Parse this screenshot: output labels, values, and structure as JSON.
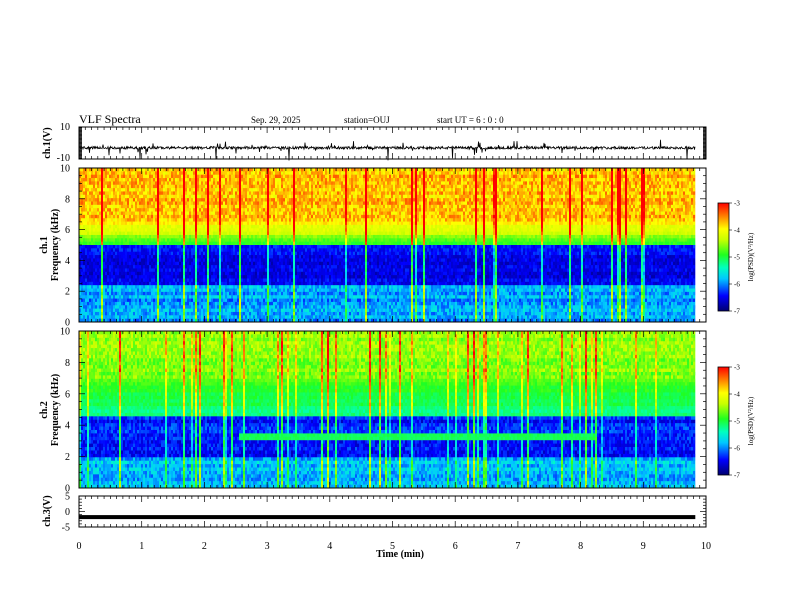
{
  "header": {
    "title": "VLF Spectra",
    "date": "Sep. 29, 2025",
    "station": "station=OUJ",
    "start": "start  UT =   6 : 0  : 0"
  },
  "chart_data": [
    {
      "type": "line",
      "ylabel": "ch.1(V)",
      "ylim": [
        -10,
        10
      ],
      "yticks": [
        "10",
        "-10"
      ],
      "baseline": -3,
      "xlim": [
        0,
        10
      ],
      "data_end_min": 9.83
    },
    {
      "type": "heatmap",
      "ylabel": "ch.1\nFrequency (kHz)",
      "ylim": [
        0,
        10
      ],
      "yticks": [
        "10",
        "8",
        "6",
        "4",
        "2",
        "0"
      ],
      "colorbar": {
        "label": "log(PSD)(V²/Hz)",
        "range": [
          -7,
          -3
        ],
        "ticks": [
          "-3",
          "-4",
          "-5",
          "-6",
          "-7"
        ]
      },
      "xlim": [
        0,
        10
      ],
      "data_end_min": 9.83
    },
    {
      "type": "heatmap",
      "ylabel": "ch.2\nFrequency (kHz)",
      "ylim": [
        0,
        10
      ],
      "yticks": [
        "10",
        "8",
        "6",
        "4",
        "2",
        "0"
      ],
      "colorbar": {
        "label": "log(PSD)(V²/Hz)",
        "range": [
          -7,
          -3
        ],
        "ticks": [
          "-3",
          "-4",
          "-5",
          "-6",
          "-7"
        ]
      },
      "band_khz": 3.3,
      "band_span_min": [
        2.55,
        8.2
      ],
      "xlim": [
        0,
        10
      ],
      "data_end_min": 9.83
    },
    {
      "type": "line",
      "ylabel": "ch.3(V)",
      "ylim": [
        -5,
        5
      ],
      "yticks": [
        "5",
        "0",
        "-5"
      ],
      "baseline": -1.8,
      "xlim": [
        0,
        10
      ],
      "data_end_min": 9.83
    }
  ],
  "xaxis": {
    "label": "Time  (min)",
    "ticks": [
      "0",
      "1",
      "2",
      "3",
      "4",
      "5",
      "6",
      "7",
      "8",
      "9",
      "10"
    ]
  },
  "colors": {
    "frame": "#000000",
    "trace": "#000000"
  }
}
